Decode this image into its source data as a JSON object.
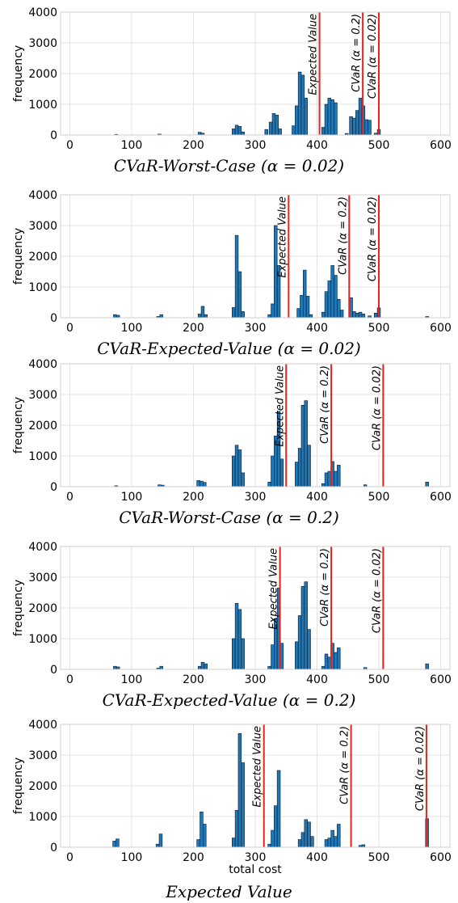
{
  "chart_data": [
    {
      "type": "bar",
      "caption": "CVaR-Worst-Case (α = 0.02)",
      "caption_name": "CVaR-Worst-Case",
      "caption_param": "(α = 0.02)",
      "xlabel": "",
      "ylabel": "frequency",
      "xlim": [
        -15,
        615
      ],
      "ylim": [
        0,
        4000
      ],
      "xticks": [
        0,
        100,
        200,
        300,
        400,
        500,
        600
      ],
      "yticks": [
        0,
        1000,
        2000,
        3000,
        4000
      ],
      "grid": true,
      "bins": [
        {
          "x": 75,
          "y": 20
        },
        {
          "x": 145,
          "y": 30
        },
        {
          "x": 210,
          "y": 90
        },
        {
          "x": 215,
          "y": 60
        },
        {
          "x": 265,
          "y": 200
        },
        {
          "x": 270,
          "y": 320
        },
        {
          "x": 275,
          "y": 280
        },
        {
          "x": 280,
          "y": 100
        },
        {
          "x": 318,
          "y": 180
        },
        {
          "x": 325,
          "y": 420
        },
        {
          "x": 330,
          "y": 700
        },
        {
          "x": 335,
          "y": 650
        },
        {
          "x": 340,
          "y": 200
        },
        {
          "x": 362,
          "y": 300
        },
        {
          "x": 367,
          "y": 950
        },
        {
          "x": 372,
          "y": 2050
        },
        {
          "x": 377,
          "y": 1950
        },
        {
          "x": 382,
          "y": 1200
        },
        {
          "x": 410,
          "y": 250
        },
        {
          "x": 415,
          "y": 1000
        },
        {
          "x": 420,
          "y": 1200
        },
        {
          "x": 425,
          "y": 1150
        },
        {
          "x": 430,
          "y": 1050
        },
        {
          "x": 448,
          "y": 50
        },
        {
          "x": 455,
          "y": 600
        },
        {
          "x": 460,
          "y": 550
        },
        {
          "x": 465,
          "y": 800
        },
        {
          "x": 470,
          "y": 1200
        },
        {
          "x": 475,
          "y": 950
        },
        {
          "x": 480,
          "y": 500
        },
        {
          "x": 485,
          "y": 480
        },
        {
          "x": 495,
          "y": 60
        },
        {
          "x": 500,
          "y": 180
        }
      ],
      "vlines": [
        {
          "x": 404,
          "label": "Expected Value"
        },
        {
          "x": 474,
          "label": "CVaR (α = 0.2)"
        },
        {
          "x": 500,
          "label": "CVaR (α = 0.02)"
        }
      ]
    },
    {
      "type": "bar",
      "caption": "CVaR-Expected-Value (α = 0.02)",
      "caption_name": "CVaR-Expected-Value",
      "caption_param": "(α = 0.02)",
      "xlabel": "",
      "ylabel": "frequency",
      "xlim": [
        -15,
        615
      ],
      "ylim": [
        0,
        4000
      ],
      "xticks": [
        0,
        100,
        200,
        300,
        400,
        500,
        600
      ],
      "yticks": [
        0,
        1000,
        2000,
        3000,
        4000
      ],
      "grid": true,
      "bins": [
        {
          "x": 73,
          "y": 100
        },
        {
          "x": 78,
          "y": 80
        },
        {
          "x": 143,
          "y": 40
        },
        {
          "x": 148,
          "y": 100
        },
        {
          "x": 210,
          "y": 120
        },
        {
          "x": 215,
          "y": 370
        },
        {
          "x": 220,
          "y": 100
        },
        {
          "x": 265,
          "y": 330
        },
        {
          "x": 270,
          "y": 2680
        },
        {
          "x": 275,
          "y": 1500
        },
        {
          "x": 280,
          "y": 200
        },
        {
          "x": 323,
          "y": 100
        },
        {
          "x": 328,
          "y": 450
        },
        {
          "x": 333,
          "y": 3000
        },
        {
          "x": 338,
          "y": 1700
        },
        {
          "x": 370,
          "y": 300
        },
        {
          "x": 375,
          "y": 730
        },
        {
          "x": 380,
          "y": 1550
        },
        {
          "x": 385,
          "y": 700
        },
        {
          "x": 390,
          "y": 100
        },
        {
          "x": 410,
          "y": 180
        },
        {
          "x": 415,
          "y": 850
        },
        {
          "x": 420,
          "y": 1200
        },
        {
          "x": 425,
          "y": 1700
        },
        {
          "x": 430,
          "y": 1380
        },
        {
          "x": 435,
          "y": 600
        },
        {
          "x": 440,
          "y": 250
        },
        {
          "x": 455,
          "y": 650
        },
        {
          "x": 460,
          "y": 200
        },
        {
          "x": 465,
          "y": 150
        },
        {
          "x": 470,
          "y": 180
        },
        {
          "x": 475,
          "y": 120
        },
        {
          "x": 485,
          "y": 60
        },
        {
          "x": 495,
          "y": 150
        },
        {
          "x": 500,
          "y": 320
        },
        {
          "x": 578,
          "y": 40
        }
      ],
      "vlines": [
        {
          "x": 354,
          "label": "Expected Value"
        },
        {
          "x": 452,
          "label": "CVaR (α = 0.2)"
        },
        {
          "x": 500,
          "label": "CVaR (α = 0.02)"
        }
      ]
    },
    {
      "type": "bar",
      "caption": "CVaR-Worst-Case (α = 0.2)",
      "caption_name": "CVaR-Worst-Case",
      "caption_param": "(α = 0.2)",
      "xlabel": "",
      "ylabel": "frequency",
      "xlim": [
        -15,
        615
      ],
      "ylim": [
        0,
        4000
      ],
      "xticks": [
        0,
        100,
        200,
        300,
        400,
        500,
        600
      ],
      "yticks": [
        0,
        1000,
        2000,
        3000,
        4000
      ],
      "grid": true,
      "bins": [
        {
          "x": 75,
          "y": 30
        },
        {
          "x": 145,
          "y": 60
        },
        {
          "x": 150,
          "y": 50
        },
        {
          "x": 208,
          "y": 200
        },
        {
          "x": 213,
          "y": 180
        },
        {
          "x": 218,
          "y": 140
        },
        {
          "x": 265,
          "y": 1000
        },
        {
          "x": 270,
          "y": 1350
        },
        {
          "x": 275,
          "y": 1200
        },
        {
          "x": 280,
          "y": 450
        },
        {
          "x": 323,
          "y": 150
        },
        {
          "x": 328,
          "y": 1000
        },
        {
          "x": 333,
          "y": 1650
        },
        {
          "x": 338,
          "y": 2450
        },
        {
          "x": 343,
          "y": 900
        },
        {
          "x": 367,
          "y": 800
        },
        {
          "x": 372,
          "y": 1250
        },
        {
          "x": 377,
          "y": 2650
        },
        {
          "x": 382,
          "y": 2800
        },
        {
          "x": 387,
          "y": 1350
        },
        {
          "x": 410,
          "y": 100
        },
        {
          "x": 415,
          "y": 450
        },
        {
          "x": 420,
          "y": 500
        },
        {
          "x": 425,
          "y": 820
        },
        {
          "x": 430,
          "y": 500
        },
        {
          "x": 435,
          "y": 700
        },
        {
          "x": 478,
          "y": 60
        },
        {
          "x": 578,
          "y": 150
        }
      ],
      "vlines": [
        {
          "x": 350,
          "label": "Expected Value"
        },
        {
          "x": 423,
          "label": "CVaR (α = 0.2)"
        },
        {
          "x": 507,
          "label": "CVaR (α = 0.02)"
        }
      ]
    },
    {
      "type": "bar",
      "caption": "CVaR-Expected-Value (α = 0.2)",
      "caption_name": "CVaR-Expected-Value",
      "caption_param": "(α = 0.2)",
      "xlabel": "",
      "ylabel": "frequency",
      "xlim": [
        -15,
        615
      ],
      "ylim": [
        0,
        4000
      ],
      "xticks": [
        0,
        100,
        200,
        300,
        400,
        500,
        600
      ],
      "yticks": [
        0,
        1000,
        2000,
        3000,
        4000
      ],
      "grid": true,
      "bins": [
        {
          "x": 73,
          "y": 100
        },
        {
          "x": 78,
          "y": 80
        },
        {
          "x": 143,
          "y": 40
        },
        {
          "x": 148,
          "y": 100
        },
        {
          "x": 210,
          "y": 100
        },
        {
          "x": 215,
          "y": 230
        },
        {
          "x": 220,
          "y": 180
        },
        {
          "x": 265,
          "y": 1000
        },
        {
          "x": 270,
          "y": 2150
        },
        {
          "x": 275,
          "y": 1950
        },
        {
          "x": 280,
          "y": 1000
        },
        {
          "x": 323,
          "y": 100
        },
        {
          "x": 328,
          "y": 800
        },
        {
          "x": 333,
          "y": 1650
        },
        {
          "x": 338,
          "y": 2650
        },
        {
          "x": 343,
          "y": 850
        },
        {
          "x": 367,
          "y": 900
        },
        {
          "x": 372,
          "y": 1750
        },
        {
          "x": 377,
          "y": 2700
        },
        {
          "x": 382,
          "y": 2850
        },
        {
          "x": 387,
          "y": 1300
        },
        {
          "x": 410,
          "y": 100
        },
        {
          "x": 415,
          "y": 500
        },
        {
          "x": 420,
          "y": 400
        },
        {
          "x": 425,
          "y": 850
        },
        {
          "x": 430,
          "y": 550
        },
        {
          "x": 435,
          "y": 700
        },
        {
          "x": 478,
          "y": 60
        },
        {
          "x": 578,
          "y": 180
        }
      ],
      "vlines": [
        {
          "x": 340,
          "label": "Expected Value"
        },
        {
          "x": 423,
          "label": "CVaR (α = 0.2)"
        },
        {
          "x": 507,
          "label": "CVaR (α = 0.02)"
        }
      ]
    },
    {
      "type": "bar",
      "caption": "Expected Value",
      "caption_name": "Expected Value",
      "caption_param": "",
      "xlabel": "total cost",
      "ylabel": "frequency",
      "xlim": [
        -15,
        615
      ],
      "ylim": [
        0,
        4000
      ],
      "xticks": [
        0,
        100,
        200,
        300,
        400,
        500,
        600
      ],
      "yticks": [
        0,
        1000,
        2000,
        3000,
        4000
      ],
      "grid": true,
      "bins": [
        {
          "x": 72,
          "y": 200
        },
        {
          "x": 77,
          "y": 270
        },
        {
          "x": 142,
          "y": 100
        },
        {
          "x": 147,
          "y": 430
        },
        {
          "x": 208,
          "y": 250
        },
        {
          "x": 213,
          "y": 1150
        },
        {
          "x": 218,
          "y": 750
        },
        {
          "x": 265,
          "y": 300
        },
        {
          "x": 270,
          "y": 1200
        },
        {
          "x": 275,
          "y": 3700
        },
        {
          "x": 280,
          "y": 2750
        },
        {
          "x": 323,
          "y": 100
        },
        {
          "x": 328,
          "y": 550
        },
        {
          "x": 333,
          "y": 1350
        },
        {
          "x": 338,
          "y": 2500
        },
        {
          "x": 372,
          "y": 250
        },
        {
          "x": 377,
          "y": 480
        },
        {
          "x": 382,
          "y": 900
        },
        {
          "x": 387,
          "y": 820
        },
        {
          "x": 392,
          "y": 350
        },
        {
          "x": 415,
          "y": 250
        },
        {
          "x": 420,
          "y": 300
        },
        {
          "x": 425,
          "y": 550
        },
        {
          "x": 430,
          "y": 350
        },
        {
          "x": 435,
          "y": 750
        },
        {
          "x": 470,
          "y": 60
        },
        {
          "x": 475,
          "y": 80
        },
        {
          "x": 578,
          "y": 930
        }
      ],
      "vlines": [
        {
          "x": 314,
          "label": "Expected Value"
        },
        {
          "x": 455,
          "label": "CVaR (α = 0.2)"
        },
        {
          "x": 577,
          "label": "CVaR (α = 0.02)"
        }
      ]
    }
  ]
}
